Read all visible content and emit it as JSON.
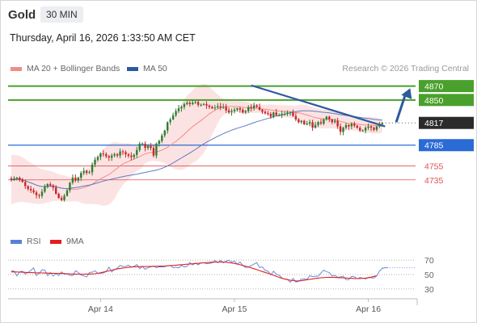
{
  "header": {
    "instrument": "Gold",
    "timeframe": "30 MIN",
    "datetime": "Thursday, April 16, 2026 1:33:50 AM CET"
  },
  "legend": {
    "bollinger": "MA 20 + Bollinger Bands",
    "ma50": "MA 50",
    "credit": "Research © 2026 Trading Central",
    "rsi": "RSI",
    "rsi_ma": "9MA"
  },
  "colors": {
    "bollinger": "#f28b8b",
    "ma50": "#2c5a9e",
    "resistance": "#4aa02c",
    "pivot": "#2a6bd6",
    "support": "#e05252",
    "last": "#2b2b2b",
    "arrow": "#2c5a9e"
  },
  "chart_data": [
    {
      "type": "candlestick",
      "series_range": [
        4700,
        4870
      ],
      "ylim": [
        4665,
        4880
      ],
      "x_labels": [
        {
          "label": "Apr 14",
          "index": 32
        },
        {
          "label": "Apr 15",
          "index": 80
        },
        {
          "label": "Apr 16",
          "index": 128
        }
      ],
      "levels": [
        {
          "value": 4870,
          "label": "4870",
          "kind": "resistance"
        },
        {
          "value": 4850,
          "label": "4850",
          "kind": "resistance"
        },
        {
          "value": 4817,
          "label": "4817",
          "kind": "last"
        },
        {
          "value": 4785,
          "label": "4785",
          "kind": "pivot"
        },
        {
          "value": 4755,
          "label": "4755",
          "kind": "support"
        },
        {
          "value": 4735,
          "label": "4735",
          "kind": "support"
        }
      ],
      "trendline": {
        "from": [
          86,
          4871
        ],
        "to": [
          134,
          4812
        ]
      },
      "projection_arrow": {
        "from": [
          138,
          4818
        ],
        "to": [
          143,
          4867
        ]
      },
      "closes": [
        4735,
        4737,
        4738,
        4735,
        4732,
        4726,
        4722,
        4720,
        4717,
        4713,
        4712,
        4718,
        4725,
        4729,
        4727,
        4724,
        4715,
        4709,
        4706,
        4712,
        4720,
        4731,
        4738,
        4734,
        4738,
        4745,
        4748,
        4745,
        4746,
        4757,
        4764,
        4768,
        4773,
        4772,
        4769,
        4767,
        4770,
        4772,
        4770,
        4776,
        4775,
        4772,
        4770,
        4768,
        4771,
        4778,
        4787,
        4787,
        4781,
        4784,
        4781,
        4770,
        4787,
        4791,
        4799,
        4806,
        4818,
        4822,
        4828,
        4834,
        4838,
        4840,
        4844,
        4846,
        4844,
        4846,
        4847,
        4843,
        4843,
        4844,
        4842,
        4840,
        4838,
        4839,
        4841,
        4839,
        4840,
        4835,
        4832,
        4834,
        4836,
        4838,
        4836,
        4832,
        4834,
        4840,
        4838,
        4842,
        4840,
        4836,
        4833,
        4831,
        4830,
        4826,
        4832,
        4828,
        4828,
        4830,
        4830,
        4832,
        4832,
        4827,
        4822,
        4818,
        4820,
        4815,
        4816,
        4818,
        4810,
        4814,
        4818,
        4816,
        4822,
        4826,
        4822,
        4818,
        4820,
        4812,
        4804,
        4810,
        4814,
        4812,
        4816,
        4813,
        4810,
        4806,
        4806,
        4810,
        4812,
        4810,
        4807,
        4812,
        4815,
        4817
      ]
    },
    {
      "type": "line",
      "title": "RSI",
      "ylim": [
        22,
        78
      ],
      "ticks": [
        70,
        50,
        30
      ],
      "series": [
        {
          "name": "RSI",
          "values": [
            55.4,
            54.7,
            48.3,
            53.9,
            54.6,
            50.7,
            53.1,
            55.9,
            59.3,
            48.6,
            51.8,
            56.6,
            56.3,
            48.6,
            52.7,
            47.9,
            51.4,
            48.8,
            53.7,
            50.5,
            51.1,
            48.8,
            48.5,
            55.3,
            53.0,
            49.2,
            48.3,
            46.5,
            53.0,
            53.2,
            55.2,
            51.7,
            51.8,
            52.3,
            54.1,
            60.2,
            53.6,
            57.1,
            58.7,
            62.7,
            61.2,
            61.4,
            63.0,
            60.5,
            61.3,
            63.9,
            58.1,
            61.2,
            57.3,
            59.8,
            60.5,
            62.0,
            59.5,
            60.7,
            60.6,
            60.9,
            62.4,
            62.6,
            59.5,
            60.2,
            59.3,
            62.8,
            60.5,
            61.2,
            66.7,
            63.3,
            66.0,
            63.5,
            66.3,
            66.3,
            65.1,
            65.4,
            66.2,
            69.8,
            66.4,
            69.6,
            66.4,
            68.7,
            69.9,
            67.4,
            68.6,
            64.4,
            67.4,
            62.5,
            59.8,
            60.3,
            62.4,
            64.6,
            66.7,
            59.7,
            60.6,
            55.8,
            54.8,
            49.6,
            54.6,
            50.6,
            49.1,
            45.3,
            43.7,
            43.4,
            39.3,
            44.6,
            39.7,
            40.5,
            43.6,
            44.1,
            43.1,
            48.4,
            47.0,
            47.7,
            47.5,
            52.1,
            56.1,
            53.9,
            52.8,
            48.1,
            48.8,
            46.2,
            46.7,
            47.6,
            43.0,
            43.0,
            47.4,
            47.0,
            44.2,
            46.0,
            45.0,
            43.9,
            46.4,
            45.4,
            45.2,
            48.2,
            54.8,
            58.6,
            59.3,
            59.5
          ]
        },
        {
          "name": "9MA",
          "values": [
            53.7,
            53.7,
            53.6,
            53.4,
            53.2,
            53.0,
            52.8,
            52.7,
            52.6,
            52.4,
            52.3,
            52.2,
            52.1,
            52.0,
            51.8,
            51.8,
            51.7,
            51.6,
            51.5,
            51.3,
            51.1,
            50.9,
            50.8,
            50.7,
            50.6,
            50.6,
            50.6,
            50.7,
            50.7,
            50.9,
            51.1,
            51.7,
            52.5,
            53.5,
            54.3,
            55.2,
            56.1,
            57.0,
            57.8,
            58.5,
            59.1,
            59.5,
            60.0,
            60.4,
            60.6,
            60.9,
            61.0,
            61.1,
            61.1,
            61.2,
            61.3,
            61.4,
            61.4,
            61.6,
            61.8,
            61.9,
            62.1,
            62.4,
            62.7,
            63.0,
            63.3,
            63.7,
            64.0,
            64.3,
            64.6,
            64.9,
            65.3,
            65.6,
            66.0,
            66.3,
            66.6,
            66.9,
            67.1,
            67.2,
            67.4,
            67.4,
            67.3,
            67.1,
            66.6,
            66.0,
            65.3,
            64.6,
            63.6,
            62.6,
            61.6,
            60.5,
            59.3,
            58.1,
            56.8,
            55.5,
            54.2,
            53.0,
            51.8,
            50.4,
            49.0,
            47.6,
            46.1,
            44.8,
            43.7,
            42.9,
            42.2,
            41.6,
            41.2,
            41.2,
            41.5,
            42.1,
            42.8,
            43.4,
            44.0,
            44.6,
            45.1,
            45.5,
            45.8,
            46.1,
            46.2,
            46.2,
            46.0,
            45.8,
            45.6,
            45.4,
            45.2,
            45.0,
            44.7,
            44.5,
            44.4,
            44.5,
            44.8,
            45.1,
            45.6,
            46.4,
            47.4,
            48.3
          ]
        }
      ]
    }
  ]
}
